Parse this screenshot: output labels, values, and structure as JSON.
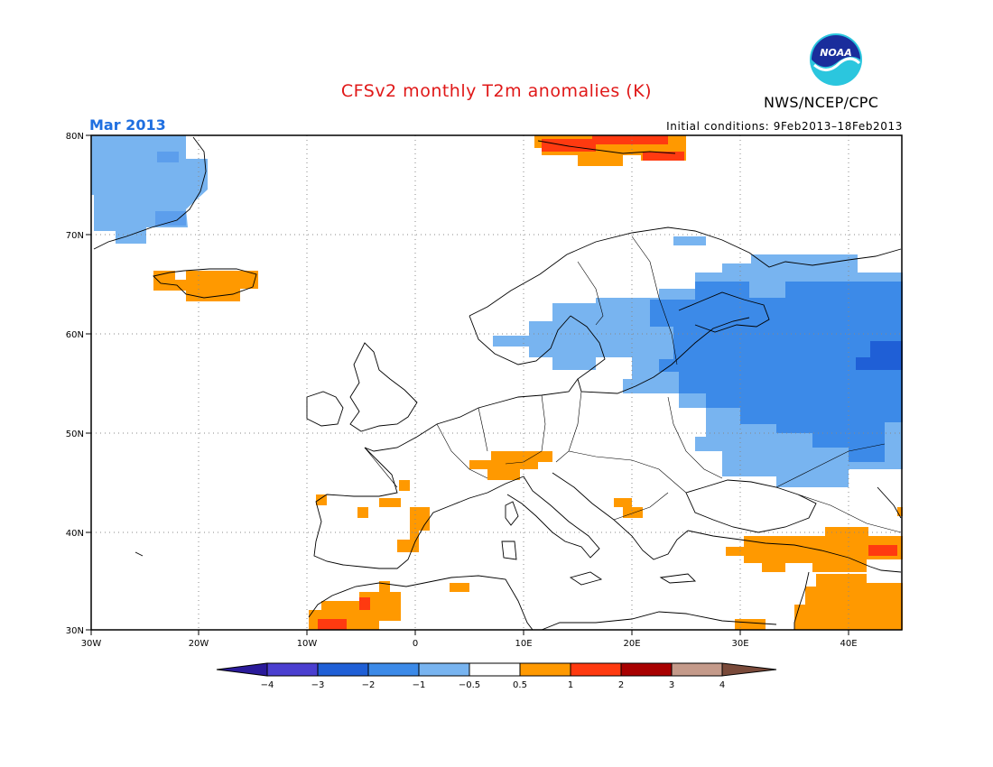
{
  "header": {
    "title": "CFSv2 monthly T2m anomalies (K)",
    "agency": "NWS/NCEP/CPC",
    "valid_month": "Mar 2013",
    "initial_conditions": "Initial conditions: 9Feb2013–18Feb2013"
  },
  "map": {
    "lon_range": [
      -30,
      45
    ],
    "lat_range": [
      30,
      80
    ],
    "lon_tick_labels": [
      "30W",
      "20W",
      "10W",
      "0",
      "10E",
      "20E",
      "30E",
      "40E"
    ],
    "lat_tick_labels": [
      "30N",
      "40N",
      "50N",
      "60N",
      "70N",
      "80N"
    ],
    "gridlines": "dotted"
  },
  "colorbar": {
    "labels": [
      "−4",
      "−3",
      "−2",
      "−1",
      "−0.5",
      "0.5",
      "1",
      "2",
      "3",
      "4"
    ],
    "colors": [
      "#2a1a9a",
      "#4b3fd0",
      "#1f5fd6",
      "#3c8ae8",
      "#78b4f0",
      "#ffffff",
      "#ff9900",
      "#ff3a10",
      "#a80000",
      "#c49a8a",
      "#7a4a3a"
    ]
  },
  "anomalies": [
    {
      "region": "Greenland east coast",
      "sign": "negative",
      "level": "-1 to -0.5"
    },
    {
      "region": "Russia / Baltic",
      "sign": "negative",
      "level": "-1 to -0.5, locally -2 to -1, core -3 to -2"
    },
    {
      "region": "Svalbard",
      "sign": "positive",
      "level": "1 to 2"
    },
    {
      "region": "Iceland",
      "sign": "positive",
      "level": "0.5 to 1"
    },
    {
      "region": "Alps",
      "sign": "positive",
      "level": "0.5 to 1"
    },
    {
      "region": "Morocco",
      "sign": "positive",
      "level": "0.5 to 2"
    },
    {
      "region": "Turkey / Middle East",
      "sign": "positive",
      "level": "0.5 to 2"
    }
  ]
}
